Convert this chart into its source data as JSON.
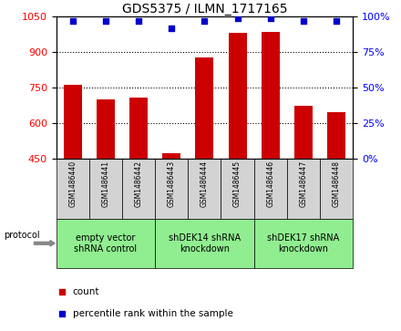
{
  "title": "GDS5375 / ILMN_1717165",
  "samples": [
    "GSM1486440",
    "GSM1486441",
    "GSM1486442",
    "GSM1486443",
    "GSM1486444",
    "GSM1486445",
    "GSM1486446",
    "GSM1486447",
    "GSM1486448"
  ],
  "counts": [
    762,
    700,
    710,
    475,
    878,
    983,
    987,
    672,
    648
  ],
  "percentile_ranks": [
    97,
    97,
    97,
    92,
    97,
    99,
    99,
    97,
    97
  ],
  "bar_color": "#cc0000",
  "dot_color": "#0000cc",
  "ylim_left": [
    450,
    1050
  ],
  "yticks_left": [
    450,
    600,
    750,
    900,
    1050
  ],
  "ylim_right": [
    0,
    100
  ],
  "yticks_right": [
    0,
    25,
    50,
    75,
    100
  ],
  "grid_lines": [
    600,
    750,
    900
  ],
  "groups": [
    {
      "label": "empty vector\nshRNA control",
      "indices": [
        0,
        1,
        2
      ]
    },
    {
      "label": "shDEK14 shRNA\nknockdown",
      "indices": [
        3,
        4,
        5
      ]
    },
    {
      "label": "shDEK17 shRNA\nknockdown",
      "indices": [
        6,
        7,
        8
      ]
    }
  ],
  "group_color": "#90ee90",
  "sample_box_color": "#d3d3d3",
  "legend_count_label": "count",
  "legend_percentile_label": "percentile rank within the sample",
  "protocol_label": "protocol",
  "title_fontsize": 10,
  "axis_label_fontsize": 8,
  "sample_fontsize": 5.5,
  "group_fontsize": 7,
  "legend_fontsize": 7.5
}
